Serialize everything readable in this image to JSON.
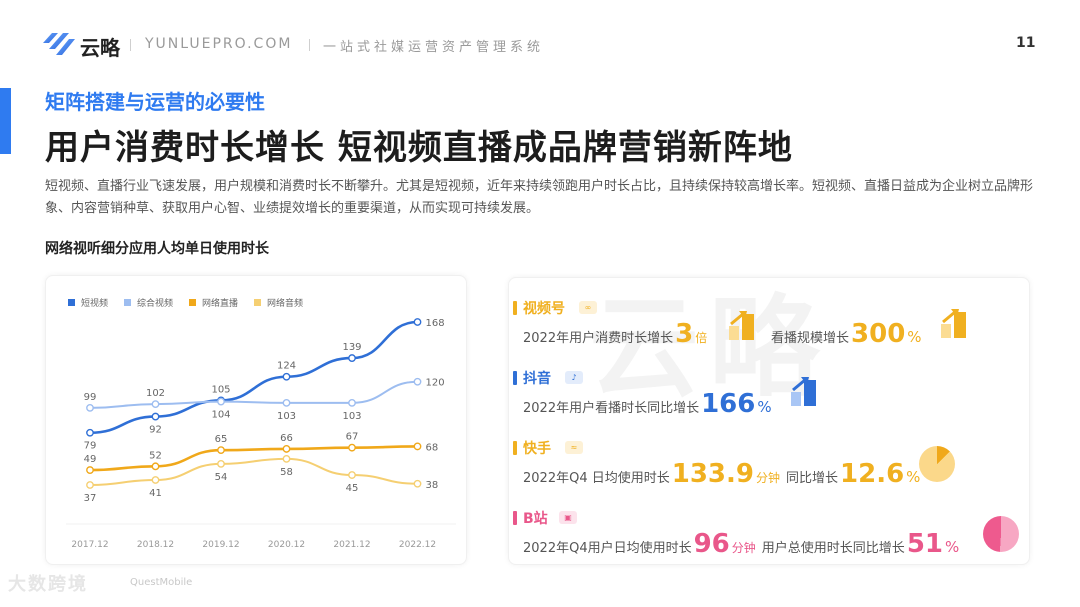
{
  "header": {
    "logo_text": "云略",
    "site": "YUNLUEPRO.COM",
    "slogan": "一站式社媒运营资产管理系统",
    "page_number": "11"
  },
  "section": {
    "subtitle": "矩阵搭建与运营的必要性",
    "title": "用户消费时长增长  短视频直播成品牌营销新阵地",
    "description": "短视频、直播行业飞速发展，用户规模和消费时长不断攀升。尤其是短视频，近年来持续领跑用户时长占比，且持续保持较高增长率。短视频、直播日益成为企业树立品牌形象、内容营销种草、获取用户心智、业绩提效增长的重要渠道，从而实现可持续发展。"
  },
  "chart_data": {
    "type": "line",
    "title": "网络视听细分应用人均单日使用时长",
    "xlabel": "",
    "ylabel": "",
    "categories": [
      "2017.12",
      "2018.12",
      "2019.12",
      "2020.12",
      "2021.12",
      "2022.12"
    ],
    "series": [
      {
        "name": "短视频",
        "color": "#2f6fd6",
        "values": [
          79,
          92,
          105,
          124,
          139,
          168
        ]
      },
      {
        "name": "综合视频",
        "color": "#9dbdf0",
        "values": [
          99,
          102,
          104,
          103,
          103,
          120
        ]
      },
      {
        "name": "网络直播",
        "color": "#f0a81a",
        "values": [
          49,
          52,
          65,
          66,
          67,
          68
        ]
      },
      {
        "name": "网络音频",
        "color": "#f5cf72",
        "values": [
          37,
          41,
          54,
          58,
          45,
          38
        ]
      }
    ],
    "ylim": [
      20,
      180
    ],
    "grid": false,
    "legend_position": "top-left"
  },
  "platforms": [
    {
      "name": "视频号",
      "badge": "∞",
      "color": "#f0b020",
      "text1": "2022年用户消费时长增长",
      "value1": "3",
      "unit1": "倍",
      "text2": "看播规模增长",
      "value2": "300",
      "unit2": "%"
    },
    {
      "name": "抖音",
      "badge": "♪",
      "color": "#2f6fd6",
      "text1": "2022年用户看播时长同比增长",
      "value1": "166",
      "unit1": "%"
    },
    {
      "name": "快手",
      "badge": "≈",
      "color": "#f0b020",
      "text1": "2022年Q4 日均使用时长",
      "value1": "133.9",
      "unit1": "分钟",
      "text2": "同比增长",
      "value2": "12.6",
      "unit2": "%"
    },
    {
      "name": "B站",
      "badge": "▣",
      "color": "#e9578a",
      "text1": "2022年Q4用户日均使用时长",
      "value1": "96",
      "unit1": "分钟",
      "text2": "用户总使用时长同比增长",
      "value2": "51",
      "unit2": "%"
    }
  ],
  "watermark": "云略",
  "footer": {
    "mark": "大数跨境",
    "source": "QuestMobile"
  }
}
